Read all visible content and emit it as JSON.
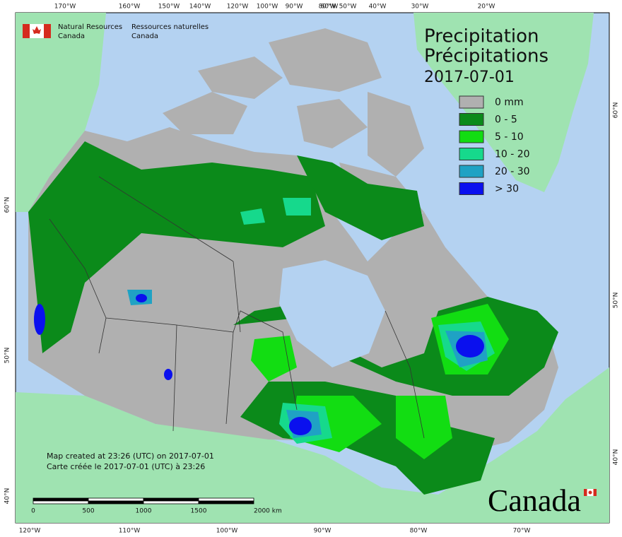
{
  "header": {
    "agency_en": [
      "Natural Resources",
      "Canada"
    ],
    "agency_fr": [
      "Ressources naturelles",
      "Canada"
    ]
  },
  "title": {
    "en": "Precipitation",
    "fr": "Précipitations",
    "date": "2017-07-01"
  },
  "legend": [
    {
      "label": "0 mm",
      "color": "#b0b0b0"
    },
    {
      "label": "0 - 5",
      "color": "#0b8a1a"
    },
    {
      "label": "5 - 10",
      "color": "#12dd12"
    },
    {
      "label": "10 - 20",
      "color": "#16d98c"
    },
    {
      "label": "20 - 30",
      "color": "#1fa2c4"
    },
    {
      "label": "> 30",
      "color": "#0a10ee"
    }
  ],
  "graticule": {
    "top": [
      "170°W",
      "160°W",
      "150°W",
      "140°W",
      "120°W",
      "100°W",
      "90°W",
      "80°W",
      "60°W",
      "50°W",
      "40°W",
      "30°W",
      "20°W"
    ],
    "bottom": [
      "120°W",
      "110°W",
      "100°W",
      "90°W",
      "80°W",
      "70°W"
    ],
    "left": [
      "60°N",
      "50°N",
      "40°N"
    ],
    "right": [
      "60°N",
      "50°N",
      "40°N"
    ]
  },
  "footer": {
    "created_en": "Map created at 23:26 (UTC) on 2017-07-01",
    "created_fr": "Carte créée le 2017-07-01 (UTC) à 23:26"
  },
  "scale": {
    "labels": [
      "0",
      "500",
      "1000",
      "1500",
      "2000 km"
    ]
  },
  "wordmark": "Canada"
}
